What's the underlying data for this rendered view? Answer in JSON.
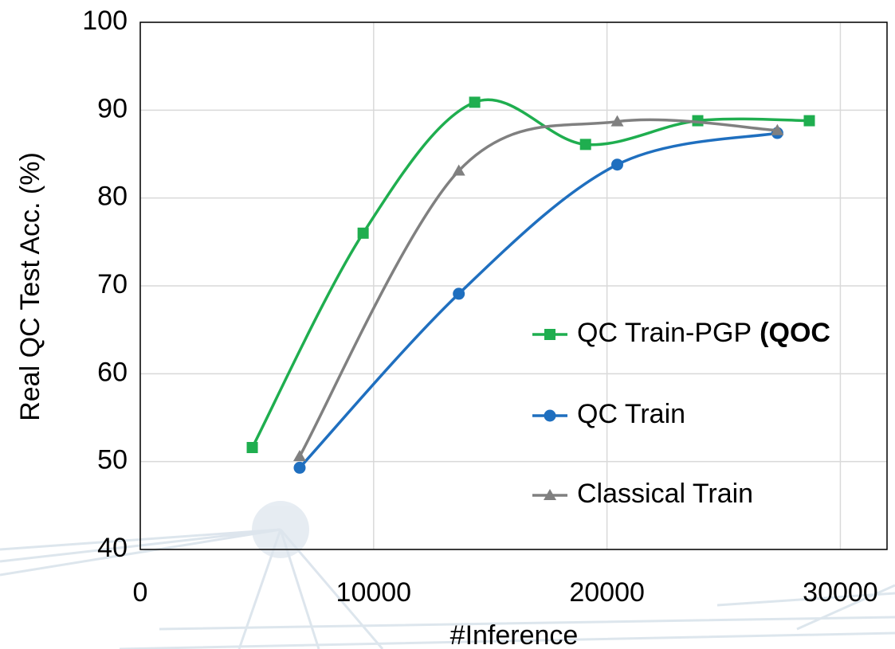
{
  "chart_data": {
    "type": "line",
    "x_label": "#Inference",
    "y_label": "Real QC Test Acc. (%)",
    "xlim": [
      0,
      32000
    ],
    "xticks": [
      0,
      10000,
      20000,
      30000
    ],
    "ylim": [
      40,
      100
    ],
    "yticks": [
      40,
      50,
      60,
      70,
      80,
      90,
      100
    ],
    "grid": true,
    "smooth": true,
    "series": [
      {
        "name": "QC Train-PGP",
        "name_emphasis": "(QOC",
        "color": "#1fae4f",
        "marker": "square",
        "x": [
          4800,
          9550,
          14330,
          19080,
          23890,
          28670
        ],
        "values": [
          51.6,
          76.0,
          90.9,
          86.1,
          88.8,
          88.8
        ]
      },
      {
        "name": "QC Train",
        "color": "#1f6fbf",
        "marker": "circle",
        "x": [
          6830,
          13650,
          20440,
          27300
        ],
        "values": [
          49.3,
          69.1,
          83.8,
          87.4
        ]
      },
      {
        "name": "Classical Train",
        "color": "#808080",
        "marker": "triangle",
        "x": [
          6830,
          13650,
          20440,
          27300
        ],
        "values": [
          50.6,
          83.1,
          88.7,
          87.7
        ]
      }
    ]
  }
}
